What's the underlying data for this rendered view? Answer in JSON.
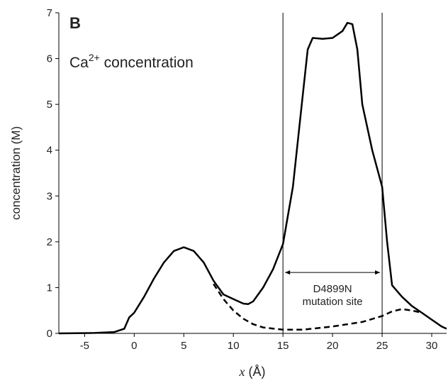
{
  "chart_data": {
    "type": "line",
    "panel_label": "B",
    "annotation": {
      "base": "Ca",
      "sup": "2+",
      "rest": " concentration"
    },
    "xlabel": [
      "x",
      " (Å)"
    ],
    "ylabel": "concentration (M)",
    "xlim": [
      -7.6,
      31.5
    ],
    "ylim": [
      0,
      7
    ],
    "xticks": [
      -5,
      0,
      5,
      10,
      15,
      20,
      25,
      30
    ],
    "yticks": [
      0,
      1,
      2,
      3,
      4,
      5,
      6,
      7
    ],
    "vlines": [
      15,
      25
    ],
    "region_label": [
      "D4899N",
      "mutation site"
    ],
    "series": [
      {
        "color": "#000000",
        "style": "solid",
        "x": [
          -7.6,
          -4,
          -2,
          -1,
          -0.5,
          0,
          1,
          2,
          3,
          4,
          5,
          6,
          7,
          8,
          9,
          10,
          11,
          11.5,
          12,
          13,
          14,
          15,
          16,
          17,
          17.5,
          18,
          19,
          20,
          21,
          21.5,
          22,
          22.5,
          23,
          24,
          25,
          25.5,
          26,
          27,
          28,
          29,
          30,
          31,
          31.5
        ],
        "values": [
          0,
          0.01,
          0.03,
          0.1,
          0.35,
          0.45,
          0.8,
          1.2,
          1.55,
          1.8,
          1.88,
          1.8,
          1.55,
          1.15,
          0.85,
          0.75,
          0.65,
          0.64,
          0.7,
          1.0,
          1.4,
          1.95,
          3.2,
          5.2,
          6.2,
          6.45,
          6.43,
          6.45,
          6.6,
          6.78,
          6.75,
          6.2,
          5.0,
          4.0,
          3.2,
          2.0,
          1.05,
          0.8,
          0.6,
          0.45,
          0.3,
          0.15,
          0.1
        ]
      },
      {
        "color": "#000000",
        "style": "dashed",
        "x": [
          8,
          9,
          10,
          11,
          12,
          13,
          15,
          17,
          20,
          23,
          25,
          26,
          27,
          28,
          29
        ],
        "values": [
          1.08,
          0.75,
          0.5,
          0.32,
          0.2,
          0.13,
          0.08,
          0.08,
          0.15,
          0.25,
          0.38,
          0.48,
          0.53,
          0.5,
          0.45
        ]
      }
    ]
  }
}
